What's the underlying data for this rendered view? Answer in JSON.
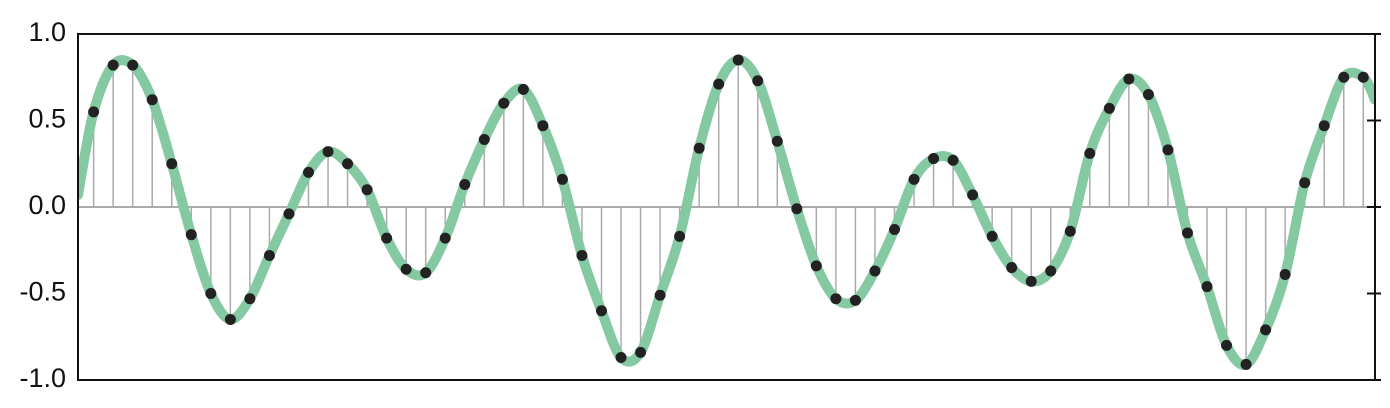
{
  "chart_data": {
    "type": "stem",
    "xlim": [
      0.2,
      66.6
    ],
    "ylim": [
      -1,
      1
    ],
    "yticks": [
      {
        "value": -1,
        "label": "-1.0"
      },
      {
        "value": -0.5,
        "label": "-0.5"
      },
      {
        "value": 0,
        "label": "0.0"
      },
      {
        "value": 0.5,
        "label": "0.5"
      },
      {
        "value": 1,
        "label": "1.0"
      }
    ],
    "zero_line_color": "#aaaaaa",
    "curve": {
      "color": "#84c9a2",
      "x": [
        0.2,
        1,
        2,
        3,
        4,
        5,
        6,
        7,
        8,
        9,
        10,
        11,
        12,
        13,
        14,
        15,
        16,
        17,
        18,
        19,
        20,
        21,
        22,
        23,
        24,
        25,
        26,
        27,
        28,
        29,
        30,
        31,
        32,
        33,
        34,
        35,
        36,
        37,
        38,
        39,
        40,
        41,
        42,
        43,
        44,
        45,
        46,
        47,
        48,
        49,
        50,
        51,
        52,
        53,
        54,
        55,
        56,
        57,
        58,
        59,
        60,
        61,
        62,
        63,
        64,
        65,
        66,
        66.6
      ],
      "values": [
        0.07,
        0.55,
        0.82,
        0.82,
        0.62,
        0.25,
        -0.16,
        -0.5,
        -0.65,
        -0.53,
        -0.28,
        -0.04,
        0.2,
        0.32,
        0.25,
        0.1,
        -0.18,
        -0.36,
        -0.38,
        -0.18,
        0.13,
        0.39,
        0.6,
        0.68,
        0.47,
        0.16,
        -0.28,
        -0.6,
        -0.87,
        -0.84,
        -0.51,
        -0.17,
        0.34,
        0.71,
        0.85,
        0.73,
        0.38,
        -0.01,
        -0.34,
        -0.53,
        -0.54,
        -0.37,
        -0.13,
        0.16,
        0.28,
        0.27,
        0.07,
        -0.17,
        -0.35,
        -0.43,
        -0.37,
        -0.14,
        0.31,
        0.57,
        0.74,
        0.65,
        0.33,
        -0.15,
        -0.46,
        -0.8,
        -0.91,
        -0.71,
        -0.39,
        0.14,
        0.47,
        0.75,
        0.75,
        0.62
      ]
    },
    "samples": {
      "color": "#222222",
      "stem_color": "#aaaaaa",
      "x": [
        1,
        2,
        3,
        4,
        5,
        6,
        7,
        8,
        9,
        10,
        11,
        12,
        13,
        14,
        15,
        16,
        17,
        18,
        19,
        20,
        21,
        22,
        23,
        24,
        25,
        26,
        27,
        28,
        29,
        30,
        31,
        32,
        33,
        34,
        35,
        36,
        37,
        38,
        39,
        40,
        41,
        42,
        43,
        44,
        45,
        46,
        47,
        48,
        49,
        50,
        51,
        52,
        53,
        54,
        55,
        56,
        57,
        58,
        59,
        60,
        61,
        62,
        63,
        64,
        65,
        66
      ],
      "values": [
        0.55,
        0.82,
        0.82,
        0.62,
        0.25,
        -0.16,
        -0.5,
        -0.65,
        -0.53,
        -0.28,
        -0.04,
        0.2,
        0.32,
        0.25,
        0.1,
        -0.18,
        -0.36,
        -0.38,
        -0.18,
        0.13,
        0.39,
        0.6,
        0.68,
        0.47,
        0.16,
        -0.28,
        -0.6,
        -0.87,
        -0.84,
        -0.51,
        -0.17,
        0.34,
        0.71,
        0.85,
        0.73,
        0.38,
        -0.01,
        -0.34,
        -0.53,
        -0.54,
        -0.37,
        -0.13,
        0.16,
        0.28,
        0.27,
        0.07,
        -0.17,
        -0.35,
        -0.43,
        -0.37,
        -0.14,
        0.31,
        0.57,
        0.74,
        0.65,
        0.33,
        -0.15,
        -0.46,
        -0.8,
        -0.91,
        -0.71,
        -0.39,
        0.14,
        0.47,
        0.75,
        0.75
      ]
    }
  }
}
